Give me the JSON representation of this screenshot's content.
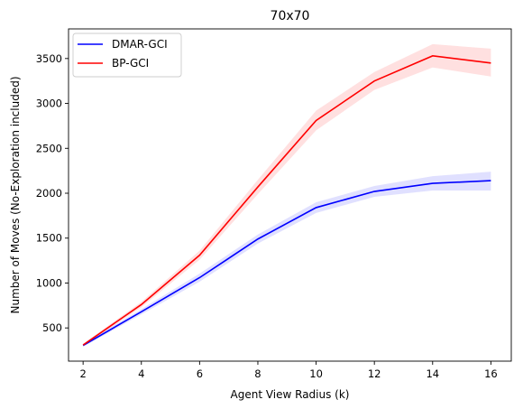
{
  "chart_data": {
    "type": "line",
    "title": "70x70",
    "xlabel": "Agent View Radius (k)",
    "ylabel": "Number of Moves (No-Exploration included)",
    "x": [
      2,
      4,
      6,
      8,
      10,
      12,
      14,
      16
    ],
    "xticks": [
      "2",
      "4",
      "6",
      "8",
      "10",
      "12",
      "14",
      "16"
    ],
    "yticks": [
      "500",
      "1000",
      "1500",
      "2000",
      "2500",
      "3000",
      "3500"
    ],
    "xlim": [
      1.5,
      16.7
    ],
    "ylim": [
      130,
      3830
    ],
    "legend_position": "top-left",
    "series": [
      {
        "name": "DMAR-GCI",
        "color": "#0000ff",
        "band_color": "#0000ff",
        "values": [
          305,
          680,
          1060,
          1490,
          1840,
          2020,
          2110,
          2140
        ],
        "lower": [
          290,
          650,
          1015,
          1440,
          1780,
          1960,
          2030,
          2030
        ],
        "upper": [
          320,
          710,
          1105,
          1540,
          1900,
          2080,
          2190,
          2240
        ]
      },
      {
        "name": "BP-GCI",
        "color": "#ff0000",
        "band_color": "#ff0000",
        "values": [
          310,
          760,
          1310,
          2070,
          2810,
          3250,
          3530,
          3450
        ],
        "lower": [
          295,
          730,
          1260,
          1990,
          2700,
          3150,
          3400,
          3300
        ],
        "upper": [
          325,
          790,
          1360,
          2150,
          2920,
          3350,
          3660,
          3610
        ]
      }
    ]
  }
}
